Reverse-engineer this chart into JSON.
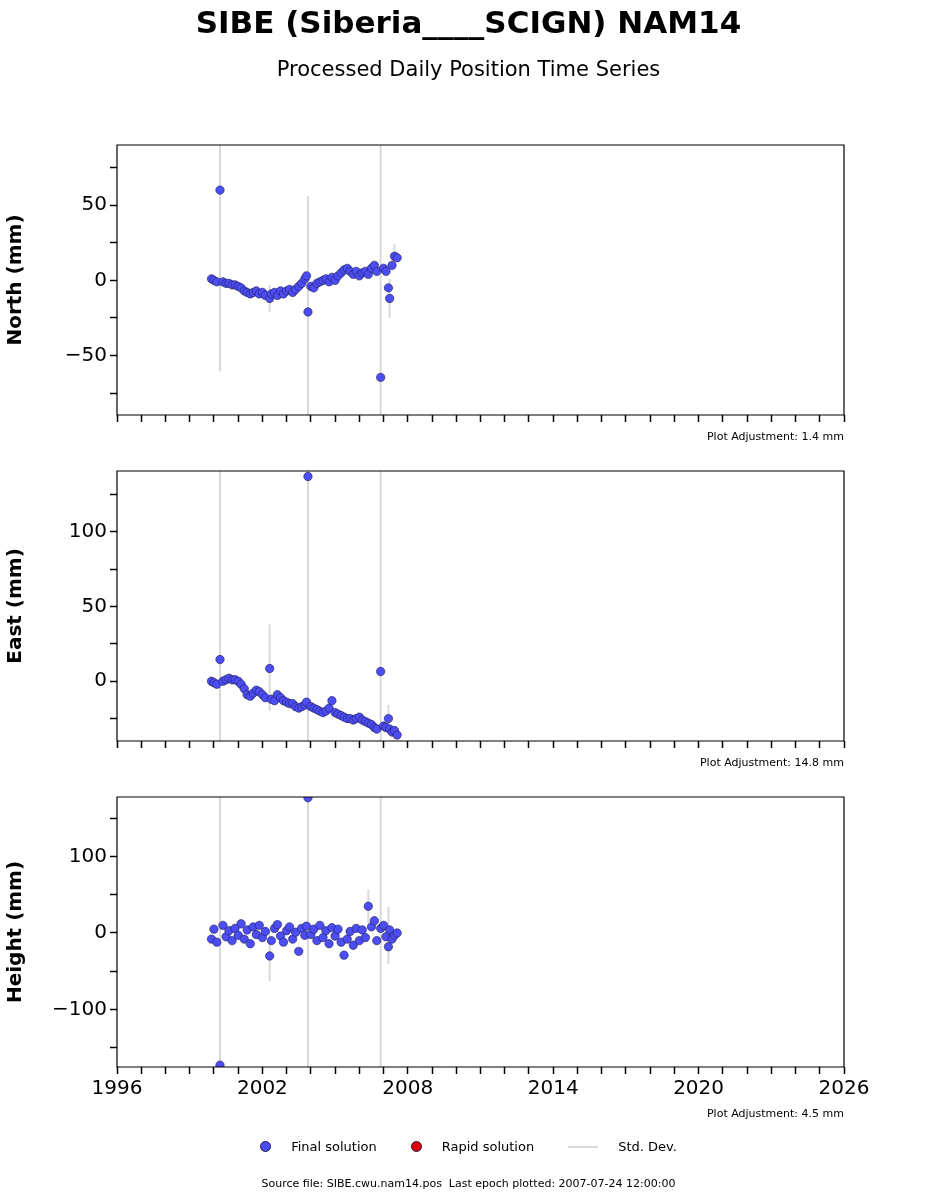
{
  "chart_data": [
    {
      "type": "scatter",
      "title": "SIBE (Siberia____SCIGN) NAM14",
      "subtitle": "Processed Daily Position Time Series",
      "ylabel": "North (mm)",
      "tick_labels": "y",
      "grid": false,
      "marker": "circle",
      "annotations": [
        "Plot Adjustment: 1.4 mm"
      ],
      "xlim": [
        1996,
        2026
      ],
      "xticks": [
        1996,
        {
          "value": 1997,
          "label": null
        },
        {
          "value": 1998,
          "label": null
        },
        {
          "value": 1999,
          "label": null
        },
        {
          "value": 2000,
          "label": null
        },
        {
          "value": 2001,
          "label": null
        },
        2002,
        {
          "value": 2003,
          "label": null
        },
        {
          "value": 2004,
          "label": null
        },
        {
          "value": 2005,
          "label": null
        },
        {
          "value": 2006,
          "label": null
        },
        {
          "value": 2007,
          "label": null
        },
        2008,
        {
          "value": 2009,
          "label": null
        },
        {
          "value": 2010,
          "label": null
        },
        {
          "value": 2011,
          "label": null
        },
        {
          "value": 2012,
          "label": null
        },
        {
          "value": 2013,
          "label": null
        },
        2014,
        {
          "value": 2015,
          "label": null
        },
        {
          "value": 2016,
          "label": null
        },
        {
          "value": 2017,
          "label": null
        },
        {
          "value": 2018,
          "label": null
        },
        {
          "value": 2019,
          "label": null
        },
        2020,
        {
          "value": 2021,
          "label": null
        },
        {
          "value": 2022,
          "label": null
        },
        {
          "value": 2023,
          "label": null
        },
        {
          "value": 2024,
          "label": null
        },
        {
          "value": 2025,
          "label": null
        },
        2026
      ],
      "ylim": [
        -89.5,
        90
      ],
      "yticks": [
        {
          "value": -75,
          "label": null
        },
        -50,
        {
          "value": -25,
          "label": null
        },
        0,
        {
          "value": 25,
          "label": null
        },
        50,
        {
          "value": 75,
          "label": null
        }
      ],
      "x": [
        1999.9,
        2000.0,
        2000.12,
        2000.25,
        2000.37,
        2000.5,
        2000.62,
        2000.75,
        2000.87,
        2001.0,
        2001.12,
        2001.25,
        2001.37,
        2001.5,
        2001.62,
        2001.75,
        2001.87,
        2002.0,
        2002.12,
        2002.3,
        2002.37,
        2002.5,
        2002.62,
        2002.75,
        2002.87,
        2003.0,
        2003.12,
        2003.25,
        2003.37,
        2003.5,
        2003.62,
        2003.75,
        2003.82,
        2003.88,
        2004.0,
        2004.12,
        2004.25,
        2004.37,
        2004.5,
        2004.62,
        2004.75,
        2004.87,
        2005.0,
        2005.12,
        2005.25,
        2005.37,
        2005.5,
        2005.62,
        2005.75,
        2005.87,
        2006.0,
        2006.12,
        2006.25,
        2006.37,
        2006.5,
        2006.62,
        2006.72,
        2006.88,
        2007.0,
        2007.1,
        2007.2,
        2007.25,
        2007.35,
        2007.45,
        2007.56
      ],
      "series": [
        {
          "color": "#4d4df5",
          "values": [
            1,
            0,
            -1,
            60,
            -1,
            -2,
            -2,
            -3,
            -3,
            -4,
            -5,
            -7,
            -8,
            -9,
            -8,
            -7,
            -9,
            -8,
            -10,
            -12,
            -9,
            -8,
            -10,
            -7,
            -9,
            -7,
            -6,
            -8,
            -6,
            -4,
            -2,
            1,
            3,
            -21,
            -4,
            -5,
            -2,
            -1,
            0,
            1,
            -1,
            2,
            0,
            3,
            5,
            7,
            8,
            6,
            4,
            6,
            3,
            5,
            6,
            4,
            8,
            10,
            6,
            -64.5,
            8,
            6,
            -5,
            -12,
            10,
            16,
            15
          ],
          "errors": [
            null,
            null,
            null,
            [
              -60.5,
              90
            ],
            null,
            null,
            null,
            null,
            null,
            null,
            null,
            null,
            null,
            null,
            null,
            null,
            null,
            null,
            null,
            9,
            null,
            null,
            null,
            null,
            null,
            null,
            null,
            null,
            null,
            null,
            null,
            null,
            null,
            [
              -89.5,
              56
            ],
            null,
            null,
            null,
            null,
            null,
            null,
            null,
            null,
            null,
            null,
            null,
            null,
            null,
            null,
            null,
            null,
            null,
            null,
            null,
            null,
            null,
            null,
            null,
            [
              -89.5,
              90
            ],
            null,
            null,
            null,
            13,
            null,
            8,
            null
          ]
        }
      ]
    },
    {
      "type": "scatter",
      "ylabel": "East (mm)",
      "tick_labels": "y",
      "grid": false,
      "marker": "circle",
      "annotations": [
        "Plot Adjustment: 14.8 mm"
      ],
      "xlim": [
        1996,
        2026
      ],
      "xticks": [
        1996,
        {
          "value": 1997,
          "label": null
        },
        {
          "value": 1998,
          "label": null
        },
        {
          "value": 1999,
          "label": null
        },
        {
          "value": 2000,
          "label": null
        },
        {
          "value": 2001,
          "label": null
        },
        2002,
        {
          "value": 2003,
          "label": null
        },
        {
          "value": 2004,
          "label": null
        },
        {
          "value": 2005,
          "label": null
        },
        {
          "value": 2006,
          "label": null
        },
        {
          "value": 2007,
          "label": null
        },
        2008,
        {
          "value": 2009,
          "label": null
        },
        {
          "value": 2010,
          "label": null
        },
        {
          "value": 2011,
          "label": null
        },
        {
          "value": 2012,
          "label": null
        },
        {
          "value": 2013,
          "label": null
        },
        2014,
        {
          "value": 2015,
          "label": null
        },
        {
          "value": 2016,
          "label": null
        },
        {
          "value": 2017,
          "label": null
        },
        {
          "value": 2018,
          "label": null
        },
        {
          "value": 2019,
          "label": null
        },
        2020,
        {
          "value": 2021,
          "label": null
        },
        {
          "value": 2022,
          "label": null
        },
        {
          "value": 2023,
          "label": null
        },
        {
          "value": 2024,
          "label": null
        },
        {
          "value": 2025,
          "label": null
        },
        2026
      ],
      "ylim": [
        -40,
        140.7
      ],
      "yticks": [
        {
          "value": -25,
          "label": null
        },
        0,
        {
          "value": 25,
          "label": null
        },
        50,
        {
          "value": 75,
          "label": null
        },
        100,
        {
          "value": 125,
          "label": null
        }
      ],
      "x": [
        1999.9,
        2000.0,
        2000.12,
        2000.25,
        2000.37,
        2000.5,
        2000.62,
        2000.75,
        2000.87,
        2001.0,
        2001.12,
        2001.25,
        2001.37,
        2001.5,
        2001.62,
        2001.75,
        2001.87,
        2002.0,
        2002.12,
        2002.3,
        2002.37,
        2002.5,
        2002.62,
        2002.75,
        2002.87,
        2003.0,
        2003.12,
        2003.25,
        2003.37,
        2003.5,
        2003.62,
        2003.75,
        2003.82,
        2003.88,
        2004.0,
        2004.12,
        2004.25,
        2004.37,
        2004.5,
        2004.62,
        2004.75,
        2004.87,
        2005.0,
        2005.12,
        2005.25,
        2005.37,
        2005.5,
        2005.62,
        2005.75,
        2005.87,
        2006.0,
        2006.12,
        2006.25,
        2006.37,
        2006.5,
        2006.62,
        2006.72,
        2006.88,
        2007.0,
        2007.1,
        2007.2,
        2007.25,
        2007.35,
        2007.45,
        2007.56
      ],
      "series": [
        {
          "color": "#4d4df5",
          "values": [
            0,
            -1,
            -2,
            14.5,
            0,
            1,
            2,
            1,
            1,
            0,
            -2,
            -5,
            -9,
            -10,
            -8,
            -6,
            -7,
            -9,
            -11,
            8.5,
            -12,
            -13,
            -9,
            -11,
            -13,
            -14,
            -15,
            -15,
            -17,
            -18,
            -17,
            -16,
            -14,
            137,
            -17,
            -18,
            -19,
            -20,
            -21,
            -20,
            -18,
            -13,
            -21,
            -22,
            -23,
            -24,
            -25,
            -25,
            -26,
            -25,
            -24,
            -26,
            -27,
            -28,
            -29,
            -31,
            -32,
            6.5,
            -30,
            -31,
            -25,
            -32,
            -34,
            -33,
            -36
          ],
          "errors": [
            null,
            null,
            null,
            [
              -40,
              140.7
            ],
            null,
            null,
            null,
            null,
            null,
            null,
            null,
            null,
            null,
            null,
            null,
            null,
            null,
            null,
            null,
            [
              -20,
              38
            ],
            null,
            null,
            null,
            null,
            null,
            null,
            null,
            null,
            null,
            null,
            null,
            null,
            null,
            [
              -40,
              140.7
            ],
            null,
            null,
            null,
            null,
            null,
            null,
            null,
            null,
            null,
            null,
            null,
            null,
            null,
            null,
            null,
            null,
            null,
            null,
            null,
            null,
            null,
            null,
            null,
            [
              -40,
              140.7
            ],
            null,
            null,
            9,
            null,
            null,
            null,
            null
          ]
        }
      ]
    },
    {
      "type": "scatter",
      "ylabel": "Height (mm)",
      "grid": false,
      "marker": "circle",
      "legend": "bottom",
      "annotations": [
        "Plot Adjustment: 4.5 mm",
        "Source file: SIBE.cwu.nam14.pos  Last epoch plotted: 2007-07-24 12:00:00"
      ],
      "xlim": [
        1996,
        2026
      ],
      "xticks": [
        1996,
        {
          "value": 1997,
          "label": null
        },
        {
          "value": 1998,
          "label": null
        },
        {
          "value": 1999,
          "label": null
        },
        {
          "value": 2000,
          "label": null
        },
        {
          "value": 2001,
          "label": null
        },
        2002,
        {
          "value": 2003,
          "label": null
        },
        {
          "value": 2004,
          "label": null
        },
        {
          "value": 2005,
          "label": null
        },
        {
          "value": 2006,
          "label": null
        },
        {
          "value": 2007,
          "label": null
        },
        2008,
        {
          "value": 2009,
          "label": null
        },
        {
          "value": 2010,
          "label": null
        },
        {
          "value": 2011,
          "label": null
        },
        {
          "value": 2012,
          "label": null
        },
        {
          "value": 2013,
          "label": null
        },
        2014,
        {
          "value": 2015,
          "label": null
        },
        {
          "value": 2016,
          "label": null
        },
        {
          "value": 2017,
          "label": null
        },
        {
          "value": 2018,
          "label": null
        },
        {
          "value": 2019,
          "label": null
        },
        2020,
        {
          "value": 2021,
          "label": null
        },
        {
          "value": 2022,
          "label": null
        },
        {
          "value": 2023,
          "label": null
        },
        {
          "value": 2024,
          "label": null
        },
        {
          "value": 2025,
          "label": null
        },
        2026
      ],
      "ylim": [
        -175.3,
        177.9
      ],
      "yticks": [
        {
          "value": -150,
          "label": null
        },
        -100,
        {
          "value": -50,
          "label": null
        },
        0,
        {
          "value": 50,
          "label": null
        },
        100,
        {
          "value": 150,
          "label": null
        }
      ],
      "x": [
        1999.9,
        2000.0,
        2000.12,
        2000.25,
        2000.37,
        2000.5,
        2000.62,
        2000.75,
        2000.87,
        2001.0,
        2001.12,
        2001.25,
        2001.37,
        2001.5,
        2001.62,
        2001.75,
        2001.87,
        2002.0,
        2002.12,
        2002.3,
        2002.37,
        2002.5,
        2002.62,
        2002.75,
        2002.87,
        2003.0,
        2003.12,
        2003.25,
        2003.37,
        2003.5,
        2003.62,
        2003.75,
        2003.82,
        2003.88,
        2004.0,
        2004.12,
        2004.25,
        2004.37,
        2004.5,
        2004.62,
        2004.75,
        2004.87,
        2005.0,
        2005.12,
        2005.25,
        2005.37,
        2005.5,
        2005.62,
        2005.75,
        2005.87,
        2006.0,
        2006.12,
        2006.25,
        2006.37,
        2006.5,
        2006.62,
        2006.72,
        2006.88,
        2007.0,
        2007.1,
        2007.2,
        2007.25,
        2007.35,
        2007.45,
        2007.56
      ],
      "series": [
        {
          "name": "Final solution",
          "color": "#4d4df5",
          "values": [
            -8,
            5,
            -12,
            -173,
            10,
            -5,
            3,
            -10,
            6,
            -3,
            12,
            -8,
            4,
            -14,
            8,
            -2,
            10,
            -6,
            2,
            -30,
            -10,
            6,
            11,
            -4,
            -12,
            3,
            8,
            -8,
            1,
            -24,
            6,
            -3,
            9,
            177,
            -2,
            5,
            -10,
            10,
            -6,
            3,
            -14,
            7,
            -4,
            5,
            -12,
            -29,
            -8,
            2,
            -16,
            6,
            -10,
            4,
            -6,
            35,
            8,
            16,
            -10,
            6,
            10,
            -5,
            -18,
            4,
            -8,
            -3,
            0
          ],
          "errors": [
            null,
            null,
            null,
            [
              -175.3,
              177.9
            ],
            null,
            null,
            null,
            null,
            null,
            null,
            null,
            null,
            null,
            null,
            null,
            null,
            null,
            null,
            null,
            [
              -63,
              3
            ],
            null,
            null,
            null,
            null,
            null,
            null,
            null,
            null,
            null,
            null,
            null,
            null,
            null,
            [
              -175.3,
              177.9
            ],
            null,
            null,
            null,
            null,
            null,
            null,
            null,
            null,
            null,
            null,
            null,
            null,
            null,
            null,
            null,
            null,
            null,
            null,
            null,
            22,
            null,
            null,
            null,
            [
              -175.3,
              177.9
            ],
            null,
            null,
            [
              -41,
              34
            ],
            null,
            null,
            null,
            null
          ]
        },
        {
          "name": "Rapid solution",
          "color": "#e00000",
          "values": [
            null,
            null,
            null,
            null,
            null,
            null,
            null,
            null,
            null,
            null,
            null,
            null,
            null,
            null,
            null,
            null,
            null,
            null,
            null,
            null,
            null,
            null,
            null,
            null,
            null,
            null,
            null,
            null,
            null,
            null,
            null,
            null,
            null,
            null,
            null,
            null,
            null,
            null,
            null,
            null,
            null,
            null,
            null,
            null,
            null,
            null,
            null,
            null,
            null,
            null,
            null,
            null,
            null,
            null,
            null,
            null,
            null,
            null,
            null,
            null,
            null,
            null,
            null,
            null,
            null
          ]
        },
        {
          "name": "Std. Dev.",
          "type": "line",
          "color": "#d9d9d9",
          "values": [
            null,
            null,
            null,
            null,
            null,
            null,
            null,
            null,
            null,
            null,
            null,
            null,
            null,
            null,
            null,
            null,
            null,
            null,
            null,
            null,
            null,
            null,
            null,
            null,
            null,
            null,
            null,
            null,
            null,
            null,
            null,
            null,
            null,
            null,
            null,
            null,
            null,
            null,
            null,
            null,
            null,
            null,
            null,
            null,
            null,
            null,
            null,
            null,
            null,
            null,
            null,
            null,
            null,
            null,
            null,
            null,
            null,
            null,
            null,
            null,
            null,
            null,
            null,
            null,
            null
          ]
        }
      ]
    }
  ]
}
